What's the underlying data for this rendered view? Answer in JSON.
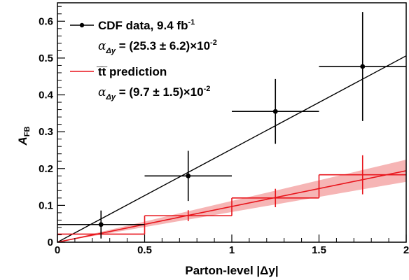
{
  "chart_data": {
    "type": "line",
    "xlabel": "Parton-level |Δy|",
    "ylabel_main": "A",
    "ylabel_sub": "FB",
    "xlim": [
      0,
      2
    ],
    "ylim": [
      0,
      0.65
    ],
    "x_ticks": [
      0,
      0.5,
      1,
      1.5,
      2
    ],
    "x_tick_labels": [
      "0",
      "0.5",
      "1",
      "1.5",
      "2"
    ],
    "y_ticks": [
      0,
      0.1,
      0.2,
      0.3,
      0.4,
      0.5,
      0.6
    ],
    "y_tick_labels": [
      "0",
      "0.1",
      "0.2",
      "0.3",
      "0.4",
      "0.5",
      "0.6"
    ],
    "grid": false,
    "legend_position": "top-left",
    "colors": {
      "data": "#000000",
      "prediction": "#e8141b",
      "band": "#f4a3a3"
    },
    "legend": {
      "data_label": "CDF data, 9.4 fb",
      "data_label_sup": "-1",
      "data_fit_alpha": "α",
      "data_fit_sub": "Δy",
      "data_fit_value": " = (25.3 ± 6.2)×10",
      "data_fit_exp": "-2",
      "prediction_label": "t̅t̅ prediction",
      "prediction_fit_alpha": "α",
      "prediction_fit_sub": "Δy",
      "prediction_fit_value": " = (9.7 ± 1.5)×10",
      "prediction_fit_exp": "-2"
    },
    "series": [
      {
        "name": "CDF data, 9.4 fb-1",
        "kind": "points",
        "points": [
          {
            "x": 0.25,
            "y": 0.048,
            "xerr": 0.25,
            "yerr": 0.038
          },
          {
            "x": 0.75,
            "y": 0.18,
            "xerr": 0.25,
            "yerr": 0.068
          },
          {
            "x": 1.25,
            "y": 0.355,
            "xerr": 0.25,
            "yerr": 0.088
          },
          {
            "x": 1.75,
            "y": 0.477,
            "xerr": 0.25,
            "yerr": 0.148
          }
        ]
      },
      {
        "name": "data fit",
        "kind": "line",
        "slope": 0.253,
        "intercept": 0
      },
      {
        "name": "tt prediction",
        "kind": "step",
        "bins": [
          {
            "x0": 0,
            "x1": 0.5,
            "y": 0.022,
            "yerr": 0.008
          },
          {
            "x0": 0.5,
            "x1": 1.0,
            "y": 0.072,
            "yerr": 0.015
          },
          {
            "x0": 1.0,
            "x1": 1.5,
            "y": 0.12,
            "yerr": 0.025
          },
          {
            "x0": 1.5,
            "x1": 2.0,
            "y": 0.183,
            "yerr": 0.053
          }
        ]
      },
      {
        "name": "prediction fit",
        "kind": "line_band",
        "slope": 0.097,
        "slope_err": 0.015,
        "intercept": 0
      }
    ]
  }
}
